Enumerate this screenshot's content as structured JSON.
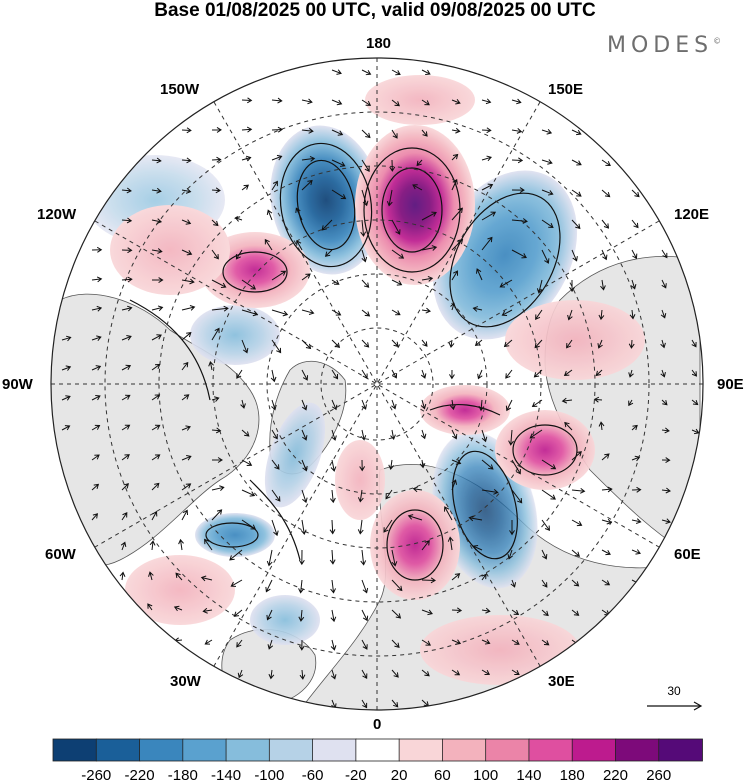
{
  "title": "Base 01/08/2025 00 UTC, valid 09/08/2025 00 UTC",
  "brand": "MODES",
  "brand_mark": "©",
  "map": {
    "projection": "north polar stereographic",
    "longitude_labels": {
      "top": "180",
      "bottom": "0",
      "left": "90W",
      "right": "90E",
      "upper_left": "150W",
      "upper_right": "150E",
      "mid_upper_left": "120W",
      "mid_upper_right": "120E",
      "mid_lower_left": "60W",
      "mid_lower_right": "60E",
      "lower_left": "30W",
      "lower_right": "30E"
    },
    "reference_vector_label": "30",
    "colors": {
      "land": "#e6e6e6",
      "negative_max": "#0d3f73",
      "positive_max": "#550a78"
    }
  },
  "colorbar": {
    "labels": [
      "-260",
      "-220",
      "-180",
      "-140",
      "-100",
      "-60",
      "-20",
      "20",
      "60",
      "100",
      "140",
      "180",
      "220",
      "260"
    ],
    "colors": [
      "#0d3f73",
      "#1a5f99",
      "#3a86bd",
      "#5aa1cf",
      "#86bddc",
      "#b6d2e7",
      "#dfe1f0",
      "#ffffff",
      "#f9d6d8",
      "#f3b2bd",
      "#eb84a8",
      "#df4fa0",
      "#bd1b8e",
      "#7d0a7a",
      "#550a78"
    ]
  }
}
